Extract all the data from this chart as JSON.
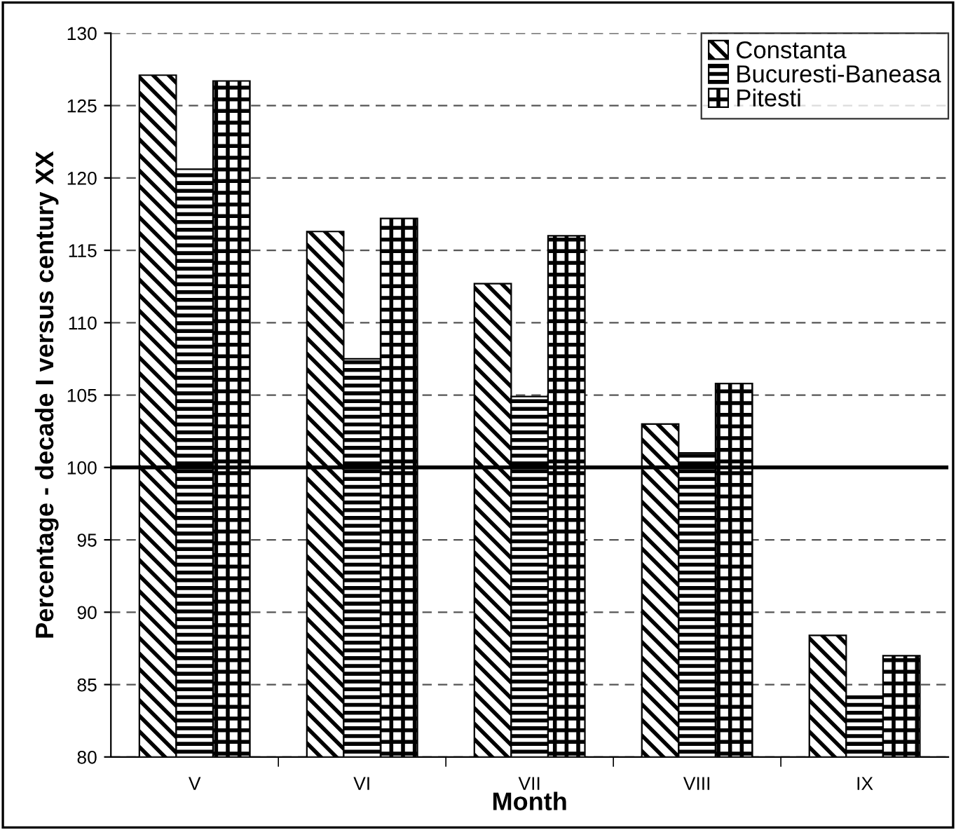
{
  "chart_data": {
    "type": "bar",
    "xlabel": "Month",
    "ylabel": "Percentage - decade I versus century XX",
    "categories": [
      "V",
      "VI",
      "VII",
      "VIII",
      "IX"
    ],
    "series": [
      {
        "name": "Constanta",
        "color": "#000000",
        "values": [
          127.1,
          116.3,
          112.7,
          103.0,
          88.4
        ]
      },
      {
        "name": "Bucuresti-Baneasa",
        "color": "#000000",
        "values": [
          120.6,
          107.5,
          104.9,
          101.0,
          84.2
        ]
      },
      {
        "name": "Pitesti",
        "color": "#000000",
        "values": [
          126.7,
          117.2,
          116.0,
          105.8,
          87.0
        ]
      }
    ],
    "ylim": [
      80,
      130
    ],
    "yticks": [
      80,
      85,
      90,
      95,
      100,
      105,
      110,
      115,
      120,
      125,
      130
    ],
    "ref_lines": [
      {
        "axis": "y",
        "value": 100,
        "color": "#000000",
        "line_style": "solid"
      }
    ],
    "grid": "y",
    "legend": "top right"
  }
}
